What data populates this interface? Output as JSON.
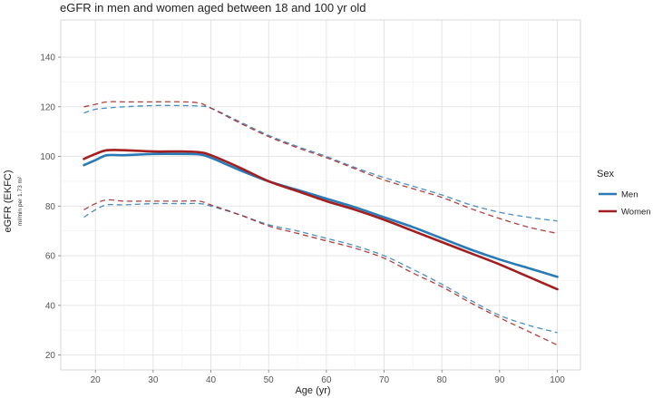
{
  "chart_data": {
    "type": "line",
    "title": "eGFR in men and women aged between 18 and 100 yr old",
    "xlabel": "Age (yr)",
    "ylabel": "eGFR (EKFC)",
    "ylabel_sub": "ml/min per 1.73 m²",
    "xlim": [
      14,
      104
    ],
    "ylim": [
      14,
      155
    ],
    "x_ticks": [
      20,
      30,
      40,
      50,
      60,
      70,
      80,
      90,
      100
    ],
    "y_ticks": [
      20,
      40,
      60,
      80,
      100,
      120,
      140
    ],
    "grid": true,
    "legend": {
      "title": "Sex",
      "position": "right",
      "entries": [
        "Men",
        "Women"
      ]
    },
    "series": [
      {
        "name": "Men",
        "color": "#2a7ab5",
        "x": [
          18,
          20,
          22,
          25,
          30,
          35,
          38,
          40,
          45,
          50,
          55,
          60,
          65,
          70,
          75,
          80,
          85,
          90,
          95,
          100
        ],
        "median": [
          96.5,
          98.5,
          100.5,
          100.5,
          101,
          101,
          100.8,
          99.5,
          94.5,
          90,
          86.5,
          83,
          79.5,
          75.5,
          71.5,
          67,
          62.5,
          58.5,
          55,
          51.5
        ],
        "upper": [
          117.5,
          119,
          119.5,
          120,
          120.5,
          120.5,
          120.3,
          119.5,
          114,
          108.5,
          104,
          100,
          95.5,
          91.5,
          88,
          84.5,
          80.5,
          77.5,
          75.5,
          74
        ],
        "lower": [
          75.5,
          78.5,
          80.5,
          80.5,
          81,
          81,
          81,
          80,
          76.5,
          72.5,
          70,
          67,
          64,
          60,
          54.5,
          48.5,
          42,
          36,
          32,
          29
        ]
      },
      {
        "name": "Women",
        "color": "#a31f1f",
        "x": [
          18,
          20,
          22,
          25,
          30,
          35,
          38,
          40,
          45,
          50,
          55,
          60,
          65,
          70,
          75,
          80,
          85,
          90,
          95,
          100
        ],
        "median": [
          99,
          101,
          102.5,
          102.5,
          102,
          102,
          101.7,
          100.5,
          95.5,
          90,
          86,
          82,
          78.5,
          74.5,
          70,
          65.5,
          61,
          56.5,
          51.5,
          46.5
        ],
        "upper": [
          120,
          121,
          122,
          122,
          122,
          122,
          121.5,
          119.5,
          113.5,
          108,
          103.5,
          99.5,
          95,
          90.5,
          87,
          83.5,
          79,
          75,
          71.5,
          69
        ],
        "lower": [
          78.5,
          81,
          82.5,
          82,
          82,
          82,
          82,
          80.5,
          76.5,
          72,
          69,
          66,
          63,
          59,
          53,
          47.5,
          41,
          35,
          29.5,
          24
        ]
      }
    ]
  }
}
